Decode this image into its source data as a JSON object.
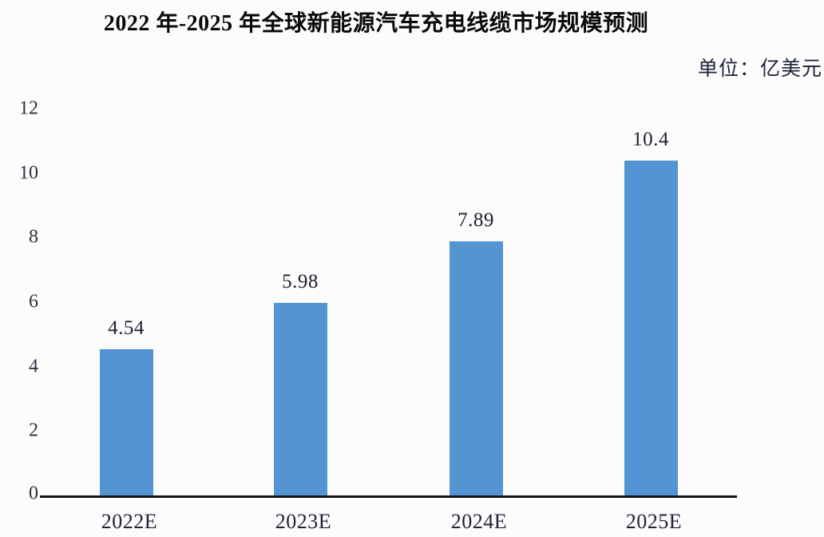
{
  "header": {
    "title": "2022 年-2025 年全球新能源汽车充电线缆市场规模预测",
    "unit_label": "单位：亿美元"
  },
  "chart_data": {
    "type": "bar",
    "title": "2022 年-2025 年全球新能源汽车充电线缆市场规模预测",
    "unit": "单位：亿美元",
    "categories": [
      "2022E",
      "2023E",
      "2024E",
      "2025E"
    ],
    "values": [
      4.54,
      5.98,
      7.89,
      10.4
    ],
    "value_labels": [
      "4.54",
      "5.98",
      "7.89",
      "10.4"
    ],
    "xlabel": "",
    "ylabel": "",
    "ylim": [
      0,
      12
    ],
    "yticks": [
      0,
      2,
      4,
      6,
      8,
      10,
      12
    ],
    "grid": false,
    "legend_position": "none",
    "bar_color": "#5594d3",
    "axis_line_color": "#16161a",
    "label_color": "#1d1d30",
    "background_color": "#fcfcfd"
  }
}
